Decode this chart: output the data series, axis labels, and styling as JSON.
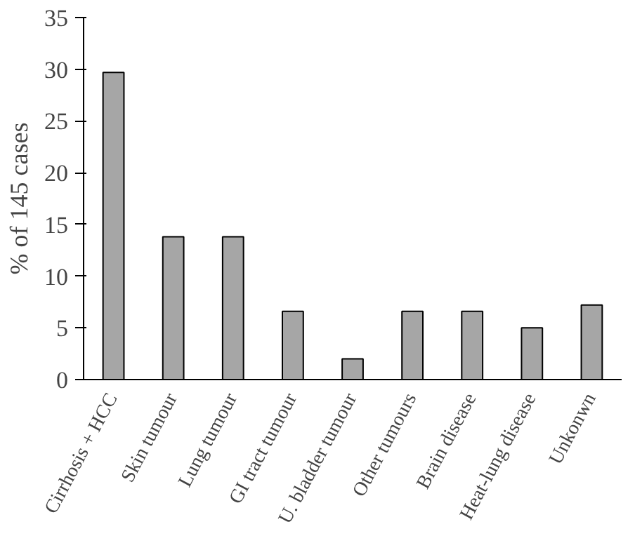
{
  "chart_data": {
    "type": "bar",
    "ylabel": "% of 145 cases",
    "categories": [
      "Cirrhosis + HCC",
      "Skin tumour",
      "Lung tumour",
      "GI tract tumour",
      "U. bladder tumour",
      "Other tumours",
      "Brain disease",
      "Heat-lung disease",
      "Unkonwn"
    ],
    "values": [
      29.7,
      13.8,
      13.8,
      6.6,
      2.0,
      6.6,
      6.6,
      5.0,
      7.2
    ],
    "color": "#a6a6a6",
    "ylim": [
      0,
      35
    ],
    "yticks": [
      0,
      5,
      10,
      15,
      20,
      25,
      30,
      35
    ],
    "grid": false
  }
}
